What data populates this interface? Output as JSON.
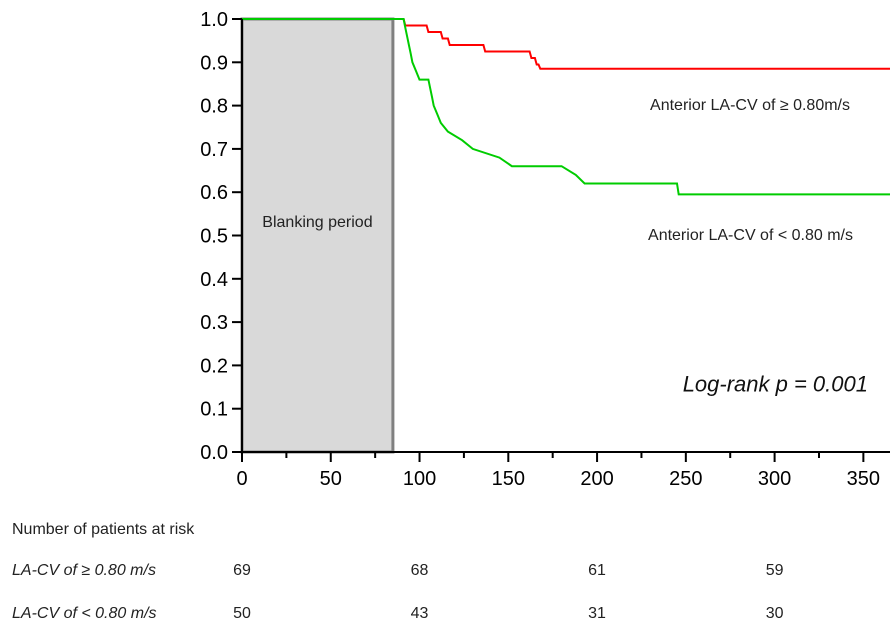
{
  "chart_data": {
    "type": "line",
    "x_ticks": [
      0,
      50,
      100,
      150,
      200,
      250,
      300,
      350
    ],
    "y_ticks": [
      "0.0",
      "0.1",
      "0.2",
      "0.3",
      "0.4",
      "0.5",
      "0.6",
      "0.7",
      "0.8",
      "0.9",
      "1.0"
    ],
    "xlim": [
      0,
      365
    ],
    "ylim": [
      0,
      1.0
    ],
    "blanking_period": {
      "label": "Blanking period",
      "x_start": 0,
      "x_end": 85
    },
    "series": [
      {
        "name": "Anterior LA-CV of ≥ 0.80m/s",
        "color": "#ff0000",
        "points": [
          [
            0,
            1.0
          ],
          [
            91,
            1.0
          ],
          [
            92,
            0.985
          ],
          [
            104,
            0.985
          ],
          [
            105,
            0.97
          ],
          [
            112,
            0.97
          ],
          [
            113,
            0.955
          ],
          [
            116,
            0.955
          ],
          [
            117,
            0.94
          ],
          [
            136,
            0.94
          ],
          [
            137,
            0.925
          ],
          [
            162,
            0.925
          ],
          [
            163,
            0.91
          ],
          [
            165,
            0.91
          ],
          [
            166,
            0.895
          ],
          [
            167,
            0.895
          ],
          [
            168,
            0.885
          ],
          [
            365,
            0.885
          ]
        ]
      },
      {
        "name": "Anterior LA-CV of < 0.80 m/s",
        "color": "#00cc00",
        "points": [
          [
            0,
            1.0
          ],
          [
            91,
            1.0
          ],
          [
            92,
            0.98
          ],
          [
            93,
            0.96
          ],
          [
            94,
            0.94
          ],
          [
            95,
            0.92
          ],
          [
            96,
            0.9
          ],
          [
            98,
            0.88
          ],
          [
            100,
            0.86
          ],
          [
            105,
            0.86
          ],
          [
            106,
            0.84
          ],
          [
            107,
            0.82
          ],
          [
            108,
            0.8
          ],
          [
            110,
            0.78
          ],
          [
            112,
            0.76
          ],
          [
            116,
            0.74
          ],
          [
            124,
            0.72
          ],
          [
            130,
            0.7
          ],
          [
            145,
            0.68
          ],
          [
            152,
            0.66
          ],
          [
            180,
            0.66
          ],
          [
            188,
            0.64
          ],
          [
            193,
            0.62
          ],
          [
            245,
            0.62
          ],
          [
            246,
            0.595
          ],
          [
            365,
            0.595
          ]
        ]
      }
    ],
    "series_labels": [
      {
        "text": "Anterior LA-CV of ≥ 0.80m/s",
        "series": 0
      },
      {
        "text": "Anterior LA-CV of < 0.80 m/s",
        "series": 1
      }
    ],
    "annotation": "Log-rank p = 0.001"
  },
  "risk_table": {
    "header": "Number of patients at risk",
    "rows": [
      {
        "label": "LA-CV of ≥ 0.80 m/s",
        "values": [
          "69",
          "68",
          "61",
          "59"
        ]
      },
      {
        "label": "LA-CV of < 0.80 m/s",
        "values": [
          "50",
          "43",
          "31",
          "30"
        ]
      }
    ],
    "at_x": [
      0,
      100,
      200,
      300
    ]
  }
}
